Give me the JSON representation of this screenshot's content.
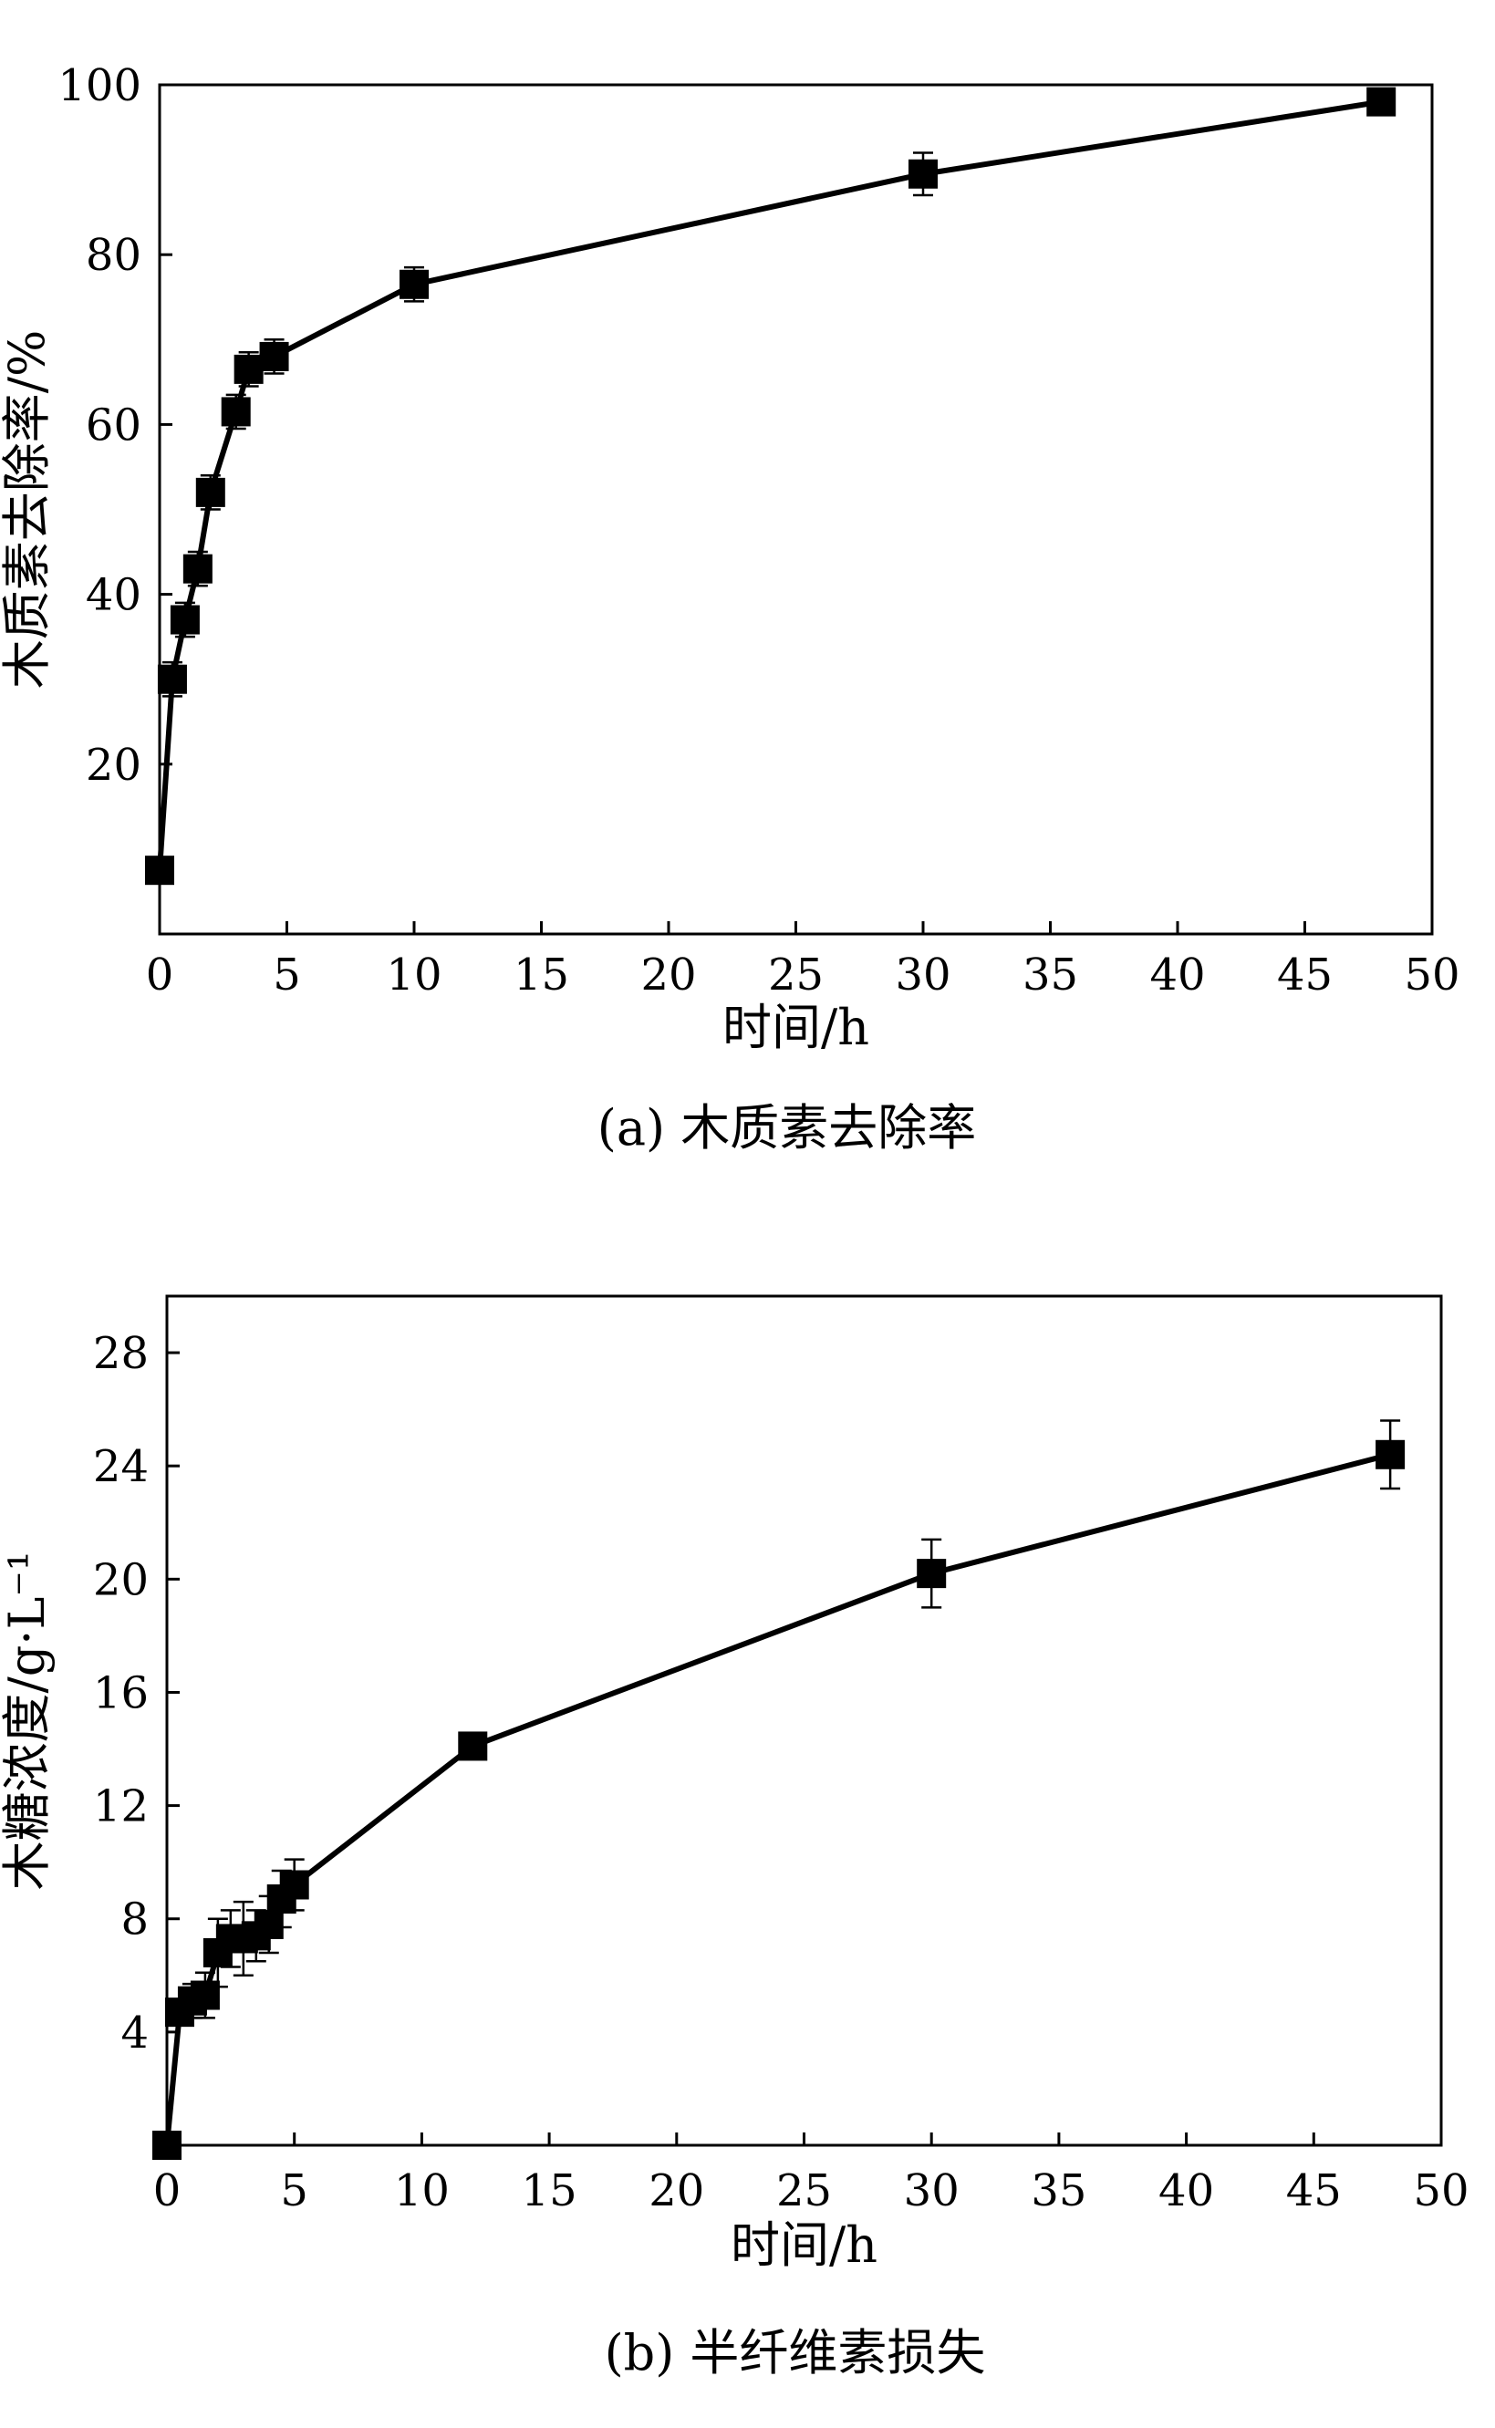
{
  "chart_data": [
    {
      "type": "line",
      "caption": "(a) 木质素去除率",
      "xlabel": "时间/h",
      "ylabel": "木质素去除率/%",
      "xlim": [
        0,
        50
      ],
      "ylim": [
        0,
        100
      ],
      "xticks": [
        0,
        5,
        10,
        15,
        20,
        25,
        30,
        35,
        40,
        45,
        50
      ],
      "yticks": [
        20,
        40,
        60,
        80,
        100
      ],
      "series": [
        {
          "x": [
            0,
            0.5,
            1,
            1.5,
            2,
            3,
            3.5,
            4.5,
            10,
            30,
            48
          ],
          "y": [
            7.5,
            30,
            37,
            43,
            52,
            61.5,
            66.5,
            68,
            76.5,
            89.5,
            98
          ],
          "err": [
            1.5,
            2,
            2,
            2,
            2,
            2,
            2,
            2,
            2,
            2.5,
            1
          ]
        }
      ]
    },
    {
      "type": "line",
      "caption": "(b) 半纤维素损失",
      "xlabel": "时间/h",
      "ylabel": "木糖浓度/g·L⁻¹",
      "xlim": [
        0,
        50
      ],
      "ylim": [
        0,
        30
      ],
      "xticks": [
        0,
        5,
        10,
        15,
        20,
        25,
        30,
        35,
        40,
        45,
        50
      ],
      "yticks": [
        4,
        8,
        12,
        16,
        20,
        24,
        28
      ],
      "series": [
        {
          "x": [
            0,
            0.5,
            1,
            1.5,
            2,
            2.5,
            3,
            3.5,
            4,
            4.5,
            5,
            12,
            30,
            48
          ],
          "y": [
            0,
            4.7,
            5.1,
            5.3,
            6.8,
            7.3,
            7.3,
            7.4,
            7.8,
            8.7,
            9.2,
            14.1,
            20.2,
            24.4
          ],
          "err": [
            0,
            0.4,
            0.6,
            0.8,
            1.2,
            1.0,
            1.3,
            0.9,
            1.0,
            1.0,
            0.9,
            0.3,
            1.2,
            1.2
          ]
        }
      ]
    }
  ]
}
